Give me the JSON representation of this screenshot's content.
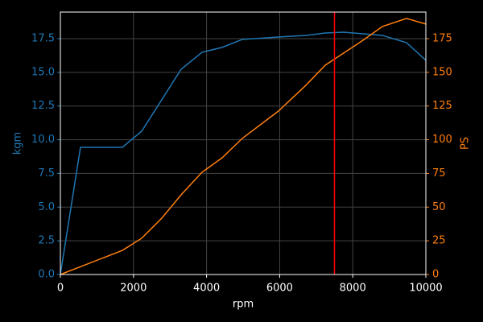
{
  "chart_data": {
    "type": "line",
    "x_label": "rpm",
    "y_label": "kgm",
    "y2_label": "PS",
    "x": [
      0,
      550,
      1696,
      2225,
      2775,
      3304,
      3877,
      4427,
      4978,
      5969,
      6718,
      7247,
      7753,
      8282,
      8811,
      9471,
      10000
    ],
    "series": [
      {
        "name": "kgm",
        "color": "#1f77b4",
        "axis": "y",
        "values": [
          0,
          9.44,
          9.44,
          10.63,
          12.97,
          15.23,
          16.49,
          16.85,
          17.44,
          17.62,
          17.74,
          17.92,
          17.98,
          17.86,
          17.74,
          17.2,
          15.89
        ]
      },
      {
        "name": "PS",
        "color": "#ff7f0e",
        "axis": "y2",
        "values": [
          0,
          5.8,
          17.9,
          26.9,
          41.8,
          59.1,
          75.9,
          86.6,
          101,
          121.3,
          140.4,
          155.3,
          164.3,
          173.8,
          184,
          190,
          185.8
        ]
      }
    ],
    "vline": {
      "value": 7500,
      "color": "#ff0000"
    },
    "xlim": [
      0,
      10000
    ],
    "xticks": [
      0,
      2000,
      4000,
      6000,
      8000,
      10000
    ],
    "ylim": [
      0,
      19.47
    ],
    "yticks": [
      {
        "value": 0,
        "label": "0.0"
      },
      {
        "value": 2.5,
        "label": "2.5"
      },
      {
        "value": 5,
        "label": "5.0"
      },
      {
        "value": 7.5,
        "label": "7.5"
      },
      {
        "value": 10,
        "label": "10.0"
      },
      {
        "value": 12.5,
        "label": "12.5"
      },
      {
        "value": 15,
        "label": "15.0"
      },
      {
        "value": 17.5,
        "label": "17.5"
      }
    ],
    "y2lim": [
      0,
      194.7
    ],
    "y2ticks": [
      0,
      25,
      50,
      75,
      100,
      125,
      150,
      175
    ],
    "grid": true
  }
}
